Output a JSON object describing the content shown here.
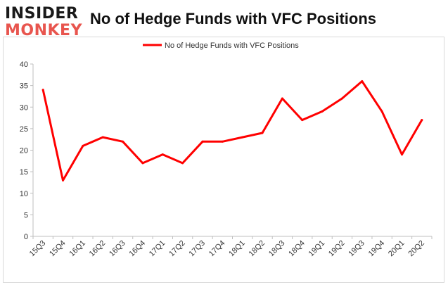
{
  "brand": {
    "logo_top": "INSIDER",
    "logo_bottom": "MONKEY"
  },
  "chart_data": {
    "type": "line",
    "title": "No of Hedge Funds with VFC Positions",
    "xlabel": "",
    "ylabel": "",
    "categories": [
      "15Q3",
      "15Q4",
      "16Q1",
      "16Q2",
      "16Q3",
      "16Q4",
      "17Q1",
      "17Q2",
      "17Q3",
      "17Q4",
      "18Q1",
      "18Q2",
      "18Q3",
      "18Q4",
      "19Q1",
      "19Q2",
      "19Q3",
      "19Q4",
      "20Q1",
      "20Q2"
    ],
    "series": [
      {
        "name": "No of Hedge Funds with VFC Positions",
        "color": "#ff0000",
        "values": [
          34,
          13,
          21,
          23,
          22,
          17,
          19,
          17,
          22,
          22,
          23,
          24,
          32,
          27,
          29,
          32,
          36,
          29,
          19,
          27
        ]
      }
    ],
    "ylim": [
      0,
      40
    ],
    "yticks": [
      0,
      5,
      10,
      15,
      20,
      25,
      30,
      35,
      40
    ],
    "grid": false,
    "legend": "top-center"
  }
}
